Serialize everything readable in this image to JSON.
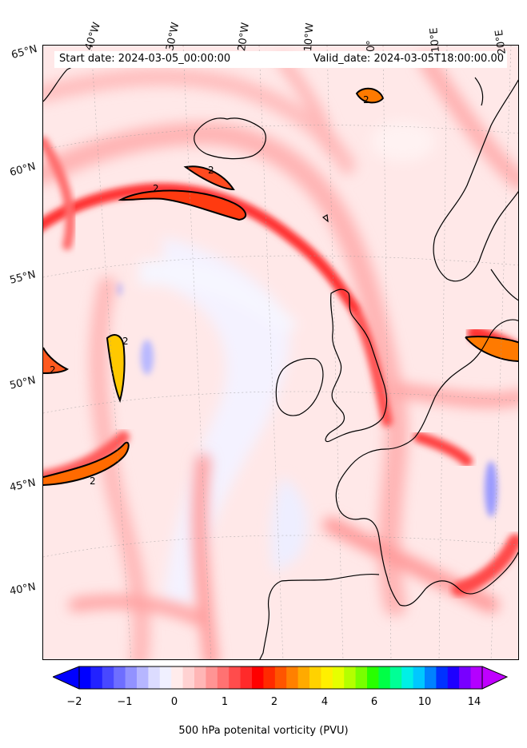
{
  "header": {
    "start_date": "Start date: 2024-03-05_00:00:00",
    "valid_date": "Valid_date: 2024-03-05T18:00:00.00"
  },
  "longitude_labels": [
    "40°W",
    "30°W",
    "20°W",
    "10°W",
    "0°",
    "10°E",
    "20°E"
  ],
  "latitude_labels": [
    "65°N",
    "60°N",
    "55°N",
    "50°N",
    "45°N",
    "40°N"
  ],
  "contour_labels": [
    "2",
    "2",
    "2",
    "2",
    "2",
    "2"
  ],
  "colorbar": {
    "title": "500 hPa potenital vorticity (PVU)",
    "tick_labels": [
      "−2",
      "−1",
      "0",
      "1",
      "2",
      "4",
      "6",
      "10",
      "14"
    ],
    "colors": [
      "#0000ff",
      "#2222ff",
      "#4848ff",
      "#6e6eff",
      "#9292ff",
      "#b6b6ff",
      "#dcdcff",
      "#f0f0ff",
      "#ffecec",
      "#ffd2d2",
      "#ffb6b6",
      "#ff9494",
      "#ff7272",
      "#ff4c4c",
      "#ff2a2a",
      "#ff0000",
      "#ff2a00",
      "#ff5500",
      "#ff8000",
      "#ffaa00",
      "#ffd200",
      "#fff000",
      "#e6ff00",
      "#b4ff00",
      "#78ff00",
      "#28ff00",
      "#00ff46",
      "#00ff96",
      "#00f0e6",
      "#00c8ff",
      "#0082ff",
      "#0032ff",
      "#1e00ff",
      "#7800ff",
      "#b400ff"
    ],
    "min_arrow_color": "#0000ff",
    "max_arrow_color": "#c000ff"
  },
  "colors": {
    "land_outline": "#000000",
    "contour": "#000000",
    "background_pv": "#ffe6e6"
  }
}
